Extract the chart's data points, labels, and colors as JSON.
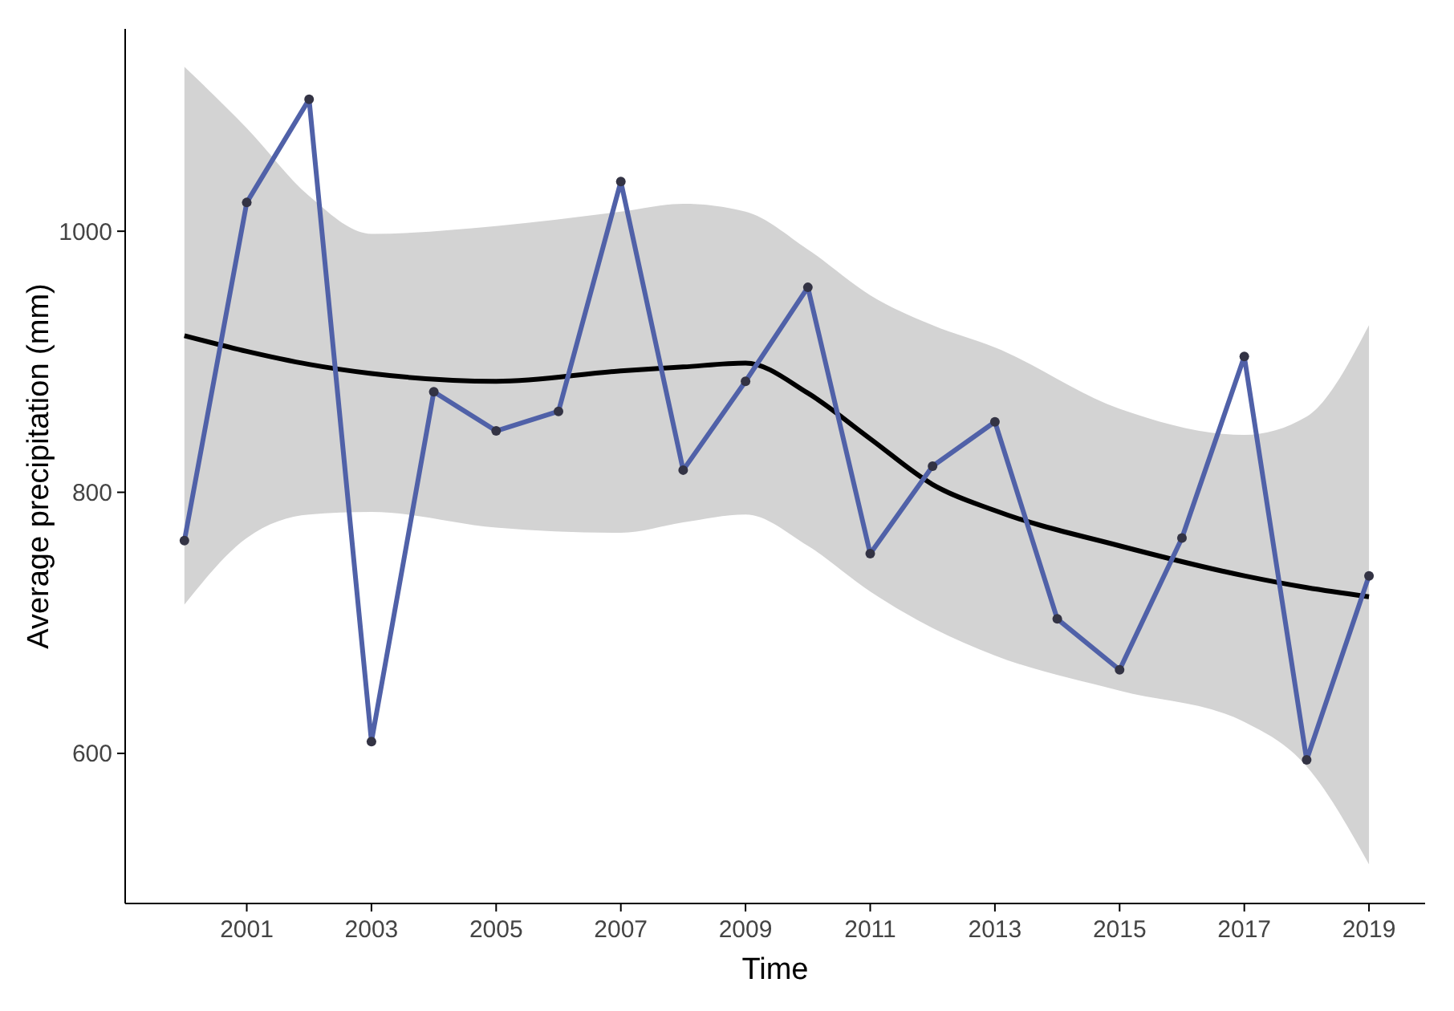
{
  "chart_data": {
    "type": "line",
    "xlabel": "Time",
    "ylabel": "Average precipitation (mm)",
    "xlim": [
      1999.05,
      2019.9
    ],
    "xticks": [
      2001,
      2003,
      2005,
      2007,
      2009,
      2011,
      2013,
      2015,
      2017,
      2019
    ],
    "ylim": [
      485,
      1155
    ],
    "yticks": [
      600,
      800,
      1000
    ],
    "grid": false,
    "series": [
      {
        "color": "#5061a8",
        "marker": "circle",
        "x": [
          2000,
          2001,
          2002,
          2003,
          2004,
          2005,
          2006,
          2007,
          2008,
          2009,
          2010,
          2011,
          2012,
          2013,
          2014,
          2015,
          2016,
          2017,
          2018,
          2019
        ],
        "values": [
          763,
          1022,
          1101,
          609,
          877,
          847,
          862,
          1038,
          817,
          885,
          957,
          753,
          820,
          854,
          703,
          664,
          765,
          904,
          595,
          736
        ]
      },
      {
        "color": "#000000",
        "marker": "none",
        "x": [
          2000,
          2001,
          2002,
          2003,
          2005,
          2007,
          2008,
          2009,
          2010,
          2011,
          2012,
          2013,
          2015,
          2017,
          2018,
          2019
        ],
        "values": [
          920,
          908,
          898,
          891,
          885,
          893,
          896,
          899,
          876,
          841,
          806,
          786,
          759,
          736,
          727,
          720
        ],
        "lower": [
          714,
          765,
          783,
          785,
          773,
          769,
          777,
          783,
          759,
          724,
          696,
          675,
          648,
          624,
          590,
          515
        ],
        "upper": [
          1126,
          1079,
          1027,
          998,
          1004,
          1015,
          1021,
          1015,
          986,
          951,
          928,
          911,
          864,
          844,
          858,
          928
        ]
      }
    ]
  }
}
